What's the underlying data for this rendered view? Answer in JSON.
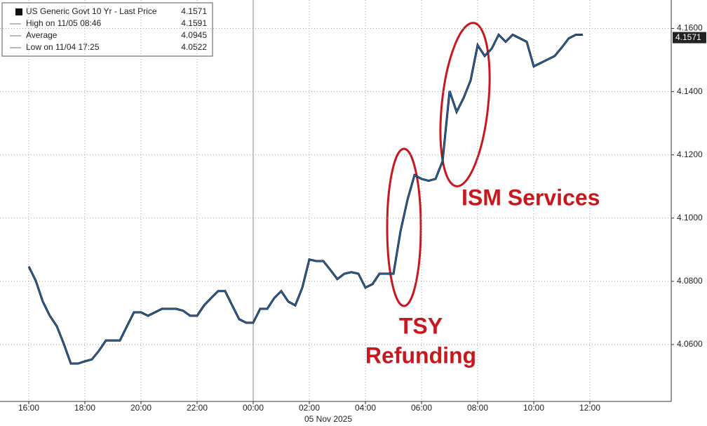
{
  "chart_data": {
    "type": "line",
    "x": [
      16,
      16.25,
      16.5,
      16.75,
      17,
      17.25,
      17.5,
      17.75,
      18,
      18.25,
      18.5,
      18.75,
      19,
      19.25,
      19.5,
      19.75,
      20,
      20.25,
      20.5,
      20.75,
      21,
      21.25,
      21.5,
      21.75,
      22,
      22.25,
      22.5,
      22.75,
      23,
      23.25,
      23.5,
      23.75,
      24,
      24.25,
      24.5,
      24.75,
      25,
      25.25,
      25.5,
      25.75,
      26,
      26.25,
      26.5,
      26.75,
      27,
      27.25,
      27.5,
      27.75,
      28,
      28.25,
      28.5,
      28.75,
      29,
      29.25,
      29.5,
      29.75,
      30,
      30.25,
      30.5,
      30.75,
      31,
      31.25,
      31.5,
      31.75,
      32,
      32.25,
      32.5,
      32.75,
      33,
      33.25,
      33.5,
      33.75,
      34,
      34.25,
      34.5,
      34.75,
      35,
      35.25,
      35.5,
      35.75
    ],
    "series": [
      {
        "name": "US Generic Govt 10 Yr - Last Price",
        "color": "#2a6fb8",
        "values": [
          4.0847,
          4.0802,
          4.0736,
          4.0691,
          4.0658,
          4.0602,
          4.054,
          4.054,
          4.0547,
          4.0553,
          4.058,
          4.0613,
          4.0613,
          4.0613,
          4.0658,
          4.0702,
          4.0702,
          4.0691,
          4.0702,
          4.0713,
          4.0713,
          4.0713,
          4.0707,
          4.0691,
          4.0691,
          4.0724,
          4.0747,
          4.0769,
          4.0769,
          4.0724,
          4.068,
          4.0669,
          4.0669,
          4.0713,
          4.0713,
          4.0747,
          4.0769,
          4.0736,
          4.0724,
          4.078,
          4.0869,
          4.0864,
          4.0864,
          4.0836,
          4.0807,
          4.0824,
          4.0829,
          4.0824,
          4.078,
          4.0791,
          4.0824,
          4.0824,
          4.0824,
          4.0958,
          4.1058,
          4.1136,
          4.1124,
          4.1118,
          4.1124,
          4.118,
          4.1402,
          4.1336,
          4.138,
          4.1436,
          4.1547,
          4.1513,
          4.1536,
          4.158,
          4.1558,
          4.158,
          4.1569,
          4.1558,
          4.148,
          4.1491,
          4.1502,
          4.1513,
          4.154,
          4.1569,
          4.158,
          4.158
        ]
      }
    ],
    "xlim": [
      14.975,
      38.9
    ],
    "ylim": [
      4.042,
      4.169
    ],
    "xticks": [
      {
        "value": 16,
        "label": "16:00"
      },
      {
        "value": 18,
        "label": "18:00"
      },
      {
        "value": 20,
        "label": "20:00"
      },
      {
        "value": 22,
        "label": "22:00"
      },
      {
        "value": 24,
        "label": "00:00"
      },
      {
        "value": 26,
        "label": "02:00"
      },
      {
        "value": 28,
        "label": "04:00"
      },
      {
        "value": 30,
        "label": "06:00"
      },
      {
        "value": 32,
        "label": "08:00"
      },
      {
        "value": 34,
        "label": "10:00"
      },
      {
        "value": 36,
        "label": "12:00"
      }
    ],
    "yticks": [
      {
        "value": 4.06,
        "label": "4.0600"
      },
      {
        "value": 4.08,
        "label": "4.0800"
      },
      {
        "value": 4.1,
        "label": "4.1000"
      },
      {
        "value": 4.12,
        "label": "4.1200"
      },
      {
        "value": 4.14,
        "label": "4.1400"
      },
      {
        "value": 4.16,
        "label": "4.1600"
      }
    ],
    "grid": true,
    "y_axis_side": "right",
    "day_label": "05 Nov 2025",
    "last_price": 4.1571,
    "legend_stats": [
      {
        "label": "US Generic Govt 10 Yr - Last Price",
        "value": 4.1571
      },
      {
        "label": "High on 11/05 08:46",
        "value": 4.1591
      },
      {
        "label": "Average",
        "value": 4.0945
      },
      {
        "label": "Low on 11/04 17:25",
        "value": 4.0522
      }
    ],
    "annotations": [
      {
        "lines": [
          "TSY",
          "Refunding"
        ]
      },
      {
        "lines": [
          "ISM Services"
        ]
      }
    ]
  }
}
